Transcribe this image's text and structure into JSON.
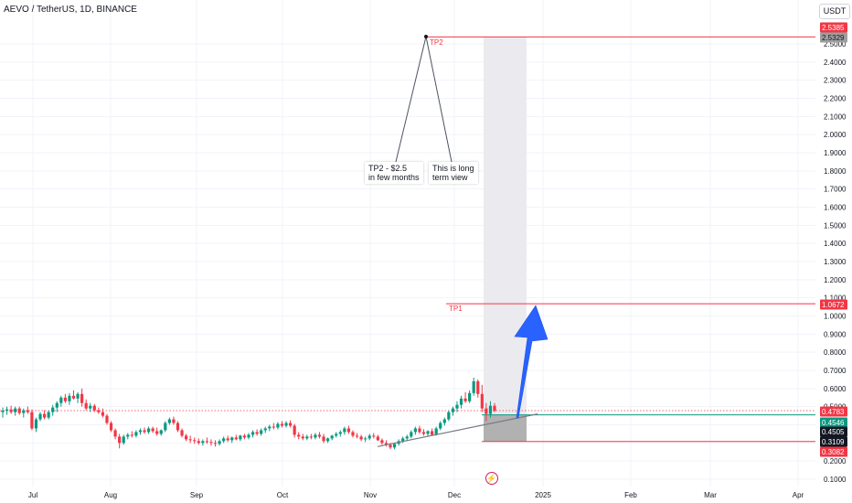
{
  "header": {
    "title": "AEVO / TetherUS, 1D, BINANCE",
    "currency": "USDT"
  },
  "chart_data": {
    "type": "candlestick",
    "x_ticks": [
      "Jul",
      "Aug",
      "Sep",
      "Oct",
      "Nov",
      "Dec",
      "2025",
      "Feb",
      "Mar",
      "Apr"
    ],
    "y_ticks": [
      "0.1000",
      "0.2000",
      "0.3000",
      "0.4000",
      "0.5000",
      "0.6000",
      "0.7000",
      "0.8000",
      "0.9000",
      "1.0000",
      "1.1000",
      "1.2000",
      "1.3000",
      "1.4000",
      "1.5000",
      "1.6000",
      "1.7000",
      "1.8000",
      "1.9000",
      "2.0000",
      "2.1000",
      "2.2000",
      "2.3000",
      "2.4000",
      "2.5000"
    ],
    "ylim": [
      0.07,
      2.63
    ],
    "price_badges": [
      {
        "label": "2.5385",
        "value": 2.5385,
        "color": "#f23645"
      },
      {
        "label": "2.5329",
        "value": 2.5329,
        "color": "#9e9e9e"
      },
      {
        "label": "1.0672",
        "value": 1.0672,
        "color": "#f23645"
      },
      {
        "label": "0.4783",
        "value": 0.4783,
        "color": "#f23645"
      },
      {
        "label": "0.4546",
        "value": 0.4546,
        "color": "#089981"
      },
      {
        "label": "0.4505",
        "value": 0.4505,
        "color": "#131722"
      },
      {
        "label": "0.3109",
        "value": 0.3109,
        "color": "#131722"
      },
      {
        "label": "0.3082",
        "value": 0.3082,
        "color": "#f23645"
      }
    ],
    "annotations": {
      "tp2_label": "TP2",
      "tp1_label": "TP1",
      "note_tp2": [
        "TP2  - $2.5",
        "in few months"
      ],
      "note_long": [
        "This is long",
        "term view"
      ]
    },
    "candles": [
      {
        "o": 0.47,
        "h": 0.495,
        "l": 0.44,
        "c": 0.478
      },
      {
        "o": 0.478,
        "h": 0.5,
        "l": 0.455,
        "c": 0.485
      },
      {
        "o": 0.485,
        "h": 0.505,
        "l": 0.46,
        "c": 0.47
      },
      {
        "o": 0.47,
        "h": 0.5,
        "l": 0.45,
        "c": 0.49
      },
      {
        "o": 0.49,
        "h": 0.5,
        "l": 0.455,
        "c": 0.465
      },
      {
        "o": 0.465,
        "h": 0.49,
        "l": 0.44,
        "c": 0.48
      },
      {
        "o": 0.48,
        "h": 0.5,
        "l": 0.46,
        "c": 0.47
      },
      {
        "o": 0.47,
        "h": 0.485,
        "l": 0.37,
        "c": 0.38
      },
      {
        "o": 0.38,
        "h": 0.44,
        "l": 0.36,
        "c": 0.43
      },
      {
        "o": 0.43,
        "h": 0.47,
        "l": 0.42,
        "c": 0.46
      },
      {
        "o": 0.46,
        "h": 0.48,
        "l": 0.43,
        "c": 0.44
      },
      {
        "o": 0.44,
        "h": 0.48,
        "l": 0.43,
        "c": 0.47
      },
      {
        "o": 0.47,
        "h": 0.51,
        "l": 0.45,
        "c": 0.495
      },
      {
        "o": 0.495,
        "h": 0.53,
        "l": 0.47,
        "c": 0.52
      },
      {
        "o": 0.52,
        "h": 0.56,
        "l": 0.5,
        "c": 0.55
      },
      {
        "o": 0.55,
        "h": 0.57,
        "l": 0.52,
        "c": 0.53
      },
      {
        "o": 0.53,
        "h": 0.575,
        "l": 0.51,
        "c": 0.56
      },
      {
        "o": 0.56,
        "h": 0.59,
        "l": 0.54,
        "c": 0.545
      },
      {
        "o": 0.545,
        "h": 0.58,
        "l": 0.52,
        "c": 0.57
      },
      {
        "o": 0.57,
        "h": 0.6,
        "l": 0.5,
        "c": 0.52
      },
      {
        "o": 0.52,
        "h": 0.54,
        "l": 0.48,
        "c": 0.49
      },
      {
        "o": 0.49,
        "h": 0.52,
        "l": 0.47,
        "c": 0.505
      },
      {
        "o": 0.505,
        "h": 0.515,
        "l": 0.47,
        "c": 0.48
      },
      {
        "o": 0.48,
        "h": 0.495,
        "l": 0.46,
        "c": 0.47
      },
      {
        "o": 0.47,
        "h": 0.49,
        "l": 0.44,
        "c": 0.45
      },
      {
        "o": 0.45,
        "h": 0.46,
        "l": 0.4,
        "c": 0.41
      },
      {
        "o": 0.41,
        "h": 0.42,
        "l": 0.36,
        "c": 0.37
      },
      {
        "o": 0.37,
        "h": 0.38,
        "l": 0.32,
        "c": 0.335
      },
      {
        "o": 0.335,
        "h": 0.35,
        "l": 0.27,
        "c": 0.3
      },
      {
        "o": 0.3,
        "h": 0.345,
        "l": 0.29,
        "c": 0.335
      },
      {
        "o": 0.335,
        "h": 0.355,
        "l": 0.32,
        "c": 0.345
      },
      {
        "o": 0.345,
        "h": 0.365,
        "l": 0.33,
        "c": 0.34
      },
      {
        "o": 0.34,
        "h": 0.37,
        "l": 0.33,
        "c": 0.36
      },
      {
        "o": 0.36,
        "h": 0.38,
        "l": 0.345,
        "c": 0.37
      },
      {
        "o": 0.37,
        "h": 0.385,
        "l": 0.35,
        "c": 0.36
      },
      {
        "o": 0.36,
        "h": 0.39,
        "l": 0.35,
        "c": 0.38
      },
      {
        "o": 0.38,
        "h": 0.39,
        "l": 0.355,
        "c": 0.365
      },
      {
        "o": 0.365,
        "h": 0.385,
        "l": 0.34,
        "c": 0.35
      },
      {
        "o": 0.35,
        "h": 0.375,
        "l": 0.34,
        "c": 0.37
      },
      {
        "o": 0.37,
        "h": 0.42,
        "l": 0.36,
        "c": 0.41
      },
      {
        "o": 0.41,
        "h": 0.44,
        "l": 0.4,
        "c": 0.43
      },
      {
        "o": 0.43,
        "h": 0.445,
        "l": 0.4,
        "c": 0.41
      },
      {
        "o": 0.41,
        "h": 0.42,
        "l": 0.36,
        "c": 0.37
      },
      {
        "o": 0.37,
        "h": 0.38,
        "l": 0.33,
        "c": 0.34
      },
      {
        "o": 0.34,
        "h": 0.35,
        "l": 0.31,
        "c": 0.32
      },
      {
        "o": 0.32,
        "h": 0.34,
        "l": 0.3,
        "c": 0.315
      },
      {
        "o": 0.315,
        "h": 0.33,
        "l": 0.295,
        "c": 0.31
      },
      {
        "o": 0.31,
        "h": 0.325,
        "l": 0.29,
        "c": 0.3
      },
      {
        "o": 0.3,
        "h": 0.32,
        "l": 0.285,
        "c": 0.31
      },
      {
        "o": 0.31,
        "h": 0.33,
        "l": 0.295,
        "c": 0.305
      },
      {
        "o": 0.305,
        "h": 0.32,
        "l": 0.285,
        "c": 0.3
      },
      {
        "o": 0.3,
        "h": 0.315,
        "l": 0.28,
        "c": 0.295
      },
      {
        "o": 0.295,
        "h": 0.32,
        "l": 0.285,
        "c": 0.31
      },
      {
        "o": 0.31,
        "h": 0.335,
        "l": 0.3,
        "c": 0.325
      },
      {
        "o": 0.325,
        "h": 0.34,
        "l": 0.305,
        "c": 0.315
      },
      {
        "o": 0.315,
        "h": 0.335,
        "l": 0.3,
        "c": 0.33
      },
      {
        "o": 0.33,
        "h": 0.345,
        "l": 0.315,
        "c": 0.32
      },
      {
        "o": 0.32,
        "h": 0.345,
        "l": 0.31,
        "c": 0.34
      },
      {
        "o": 0.34,
        "h": 0.35,
        "l": 0.32,
        "c": 0.33
      },
      {
        "o": 0.33,
        "h": 0.355,
        "l": 0.32,
        "c": 0.345
      },
      {
        "o": 0.345,
        "h": 0.37,
        "l": 0.33,
        "c": 0.36
      },
      {
        "o": 0.36,
        "h": 0.375,
        "l": 0.34,
        "c": 0.35
      },
      {
        "o": 0.35,
        "h": 0.38,
        "l": 0.34,
        "c": 0.37
      },
      {
        "o": 0.37,
        "h": 0.39,
        "l": 0.355,
        "c": 0.38
      },
      {
        "o": 0.38,
        "h": 0.4,
        "l": 0.365,
        "c": 0.39
      },
      {
        "o": 0.39,
        "h": 0.41,
        "l": 0.375,
        "c": 0.385
      },
      {
        "o": 0.385,
        "h": 0.415,
        "l": 0.375,
        "c": 0.405
      },
      {
        "o": 0.405,
        "h": 0.42,
        "l": 0.385,
        "c": 0.395
      },
      {
        "o": 0.395,
        "h": 0.42,
        "l": 0.385,
        "c": 0.41
      },
      {
        "o": 0.41,
        "h": 0.425,
        "l": 0.385,
        "c": 0.395
      },
      {
        "o": 0.395,
        "h": 0.405,
        "l": 0.33,
        "c": 0.345
      },
      {
        "o": 0.345,
        "h": 0.36,
        "l": 0.32,
        "c": 0.335
      },
      {
        "o": 0.335,
        "h": 0.35,
        "l": 0.315,
        "c": 0.325
      },
      {
        "o": 0.325,
        "h": 0.345,
        "l": 0.315,
        "c": 0.335
      },
      {
        "o": 0.335,
        "h": 0.35,
        "l": 0.32,
        "c": 0.33
      },
      {
        "o": 0.33,
        "h": 0.355,
        "l": 0.32,
        "c": 0.345
      },
      {
        "o": 0.345,
        "h": 0.36,
        "l": 0.325,
        "c": 0.335
      },
      {
        "o": 0.335,
        "h": 0.35,
        "l": 0.3,
        "c": 0.31
      },
      {
        "o": 0.31,
        "h": 0.33,
        "l": 0.3,
        "c": 0.325
      },
      {
        "o": 0.325,
        "h": 0.345,
        "l": 0.315,
        "c": 0.34
      },
      {
        "o": 0.34,
        "h": 0.36,
        "l": 0.33,
        "c": 0.35
      },
      {
        "o": 0.35,
        "h": 0.37,
        "l": 0.335,
        "c": 0.36
      },
      {
        "o": 0.36,
        "h": 0.39,
        "l": 0.345,
        "c": 0.38
      },
      {
        "o": 0.38,
        "h": 0.395,
        "l": 0.35,
        "c": 0.36
      },
      {
        "o": 0.36,
        "h": 0.37,
        "l": 0.33,
        "c": 0.34
      },
      {
        "o": 0.34,
        "h": 0.355,
        "l": 0.325,
        "c": 0.335
      },
      {
        "o": 0.335,
        "h": 0.345,
        "l": 0.31,
        "c": 0.32
      },
      {
        "o": 0.32,
        "h": 0.335,
        "l": 0.305,
        "c": 0.325
      },
      {
        "o": 0.325,
        "h": 0.35,
        "l": 0.315,
        "c": 0.34
      },
      {
        "o": 0.34,
        "h": 0.355,
        "l": 0.325,
        "c": 0.335
      },
      {
        "o": 0.335,
        "h": 0.345,
        "l": 0.31,
        "c": 0.315
      },
      {
        "o": 0.315,
        "h": 0.325,
        "l": 0.29,
        "c": 0.3
      },
      {
        "o": 0.3,
        "h": 0.315,
        "l": 0.28,
        "c": 0.29
      },
      {
        "o": 0.29,
        "h": 0.3,
        "l": 0.265,
        "c": 0.275
      },
      {
        "o": 0.275,
        "h": 0.3,
        "l": 0.265,
        "c": 0.295
      },
      {
        "o": 0.295,
        "h": 0.32,
        "l": 0.285,
        "c": 0.31
      },
      {
        "o": 0.31,
        "h": 0.335,
        "l": 0.3,
        "c": 0.325
      },
      {
        "o": 0.325,
        "h": 0.345,
        "l": 0.31,
        "c": 0.335
      },
      {
        "o": 0.335,
        "h": 0.37,
        "l": 0.325,
        "c": 0.36
      },
      {
        "o": 0.36,
        "h": 0.39,
        "l": 0.345,
        "c": 0.38
      },
      {
        "o": 0.38,
        "h": 0.395,
        "l": 0.35,
        "c": 0.36
      },
      {
        "o": 0.36,
        "h": 0.375,
        "l": 0.34,
        "c": 0.35
      },
      {
        "o": 0.35,
        "h": 0.37,
        "l": 0.335,
        "c": 0.365
      },
      {
        "o": 0.365,
        "h": 0.38,
        "l": 0.34,
        "c": 0.345
      },
      {
        "o": 0.345,
        "h": 0.39,
        "l": 0.34,
        "c": 0.38
      },
      {
        "o": 0.38,
        "h": 0.42,
        "l": 0.37,
        "c": 0.41
      },
      {
        "o": 0.41,
        "h": 0.44,
        "l": 0.395,
        "c": 0.43
      },
      {
        "o": 0.43,
        "h": 0.48,
        "l": 0.42,
        "c": 0.47
      },
      {
        "o": 0.47,
        "h": 0.5,
        "l": 0.45,
        "c": 0.49
      },
      {
        "o": 0.49,
        "h": 0.53,
        "l": 0.47,
        "c": 0.51
      },
      {
        "o": 0.51,
        "h": 0.56,
        "l": 0.49,
        "c": 0.545
      },
      {
        "o": 0.545,
        "h": 0.58,
        "l": 0.52,
        "c": 0.53
      },
      {
        "o": 0.53,
        "h": 0.59,
        "l": 0.52,
        "c": 0.575
      },
      {
        "o": 0.575,
        "h": 0.66,
        "l": 0.56,
        "c": 0.64
      },
      {
        "o": 0.64,
        "h": 0.65,
        "l": 0.55,
        "c": 0.57
      },
      {
        "o": 0.57,
        "h": 0.62,
        "l": 0.47,
        "c": 0.49
      },
      {
        "o": 0.49,
        "h": 0.52,
        "l": 0.42,
        "c": 0.46
      },
      {
        "o": 0.46,
        "h": 0.53,
        "l": 0.44,
        "c": 0.505
      },
      {
        "o": 0.505,
        "h": 0.52,
        "l": 0.47,
        "c": 0.478
      }
    ]
  }
}
